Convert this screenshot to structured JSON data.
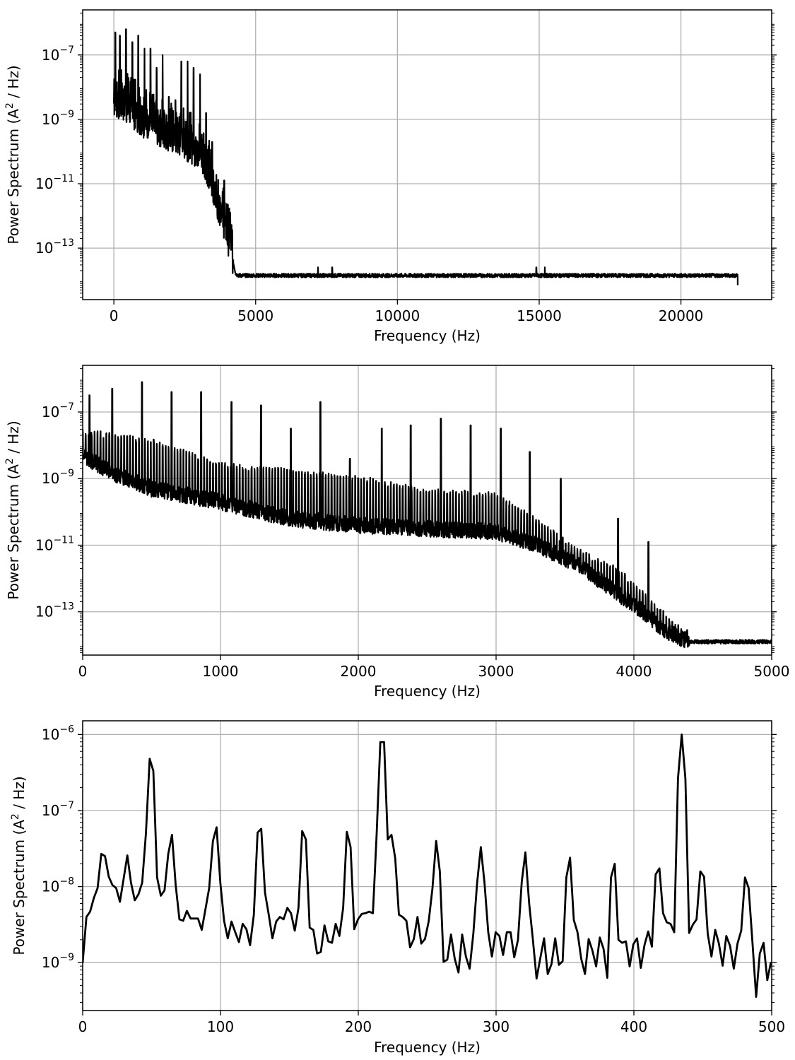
{
  "figure": {
    "background": "#ffffff",
    "line_color": "#000000",
    "grid_color": "#b0b0b0"
  },
  "chart_data": [
    {
      "type": "line",
      "name": "full-spectrum",
      "xlabel": "Frequency (Hz)",
      "ylabel": "Power Spectrum (A² / Hz)",
      "ylabel_parts": {
        "pre": "Power Spectrum (A",
        "sup": "2",
        "post": " / Hz)"
      },
      "yscale": "log",
      "xlim": [
        -1100,
        23200
      ],
      "ylim_log10": [
        -14.6,
        -5.6
      ],
      "xticks": [
        0,
        5000,
        10000,
        15000,
        20000
      ],
      "xtick_labels": [
        "0",
        "5000",
        "10000",
        "15000",
        "20000"
      ],
      "yticks_exp": [
        -7,
        -9,
        -11,
        -13
      ],
      "ytick_labels": [
        "−7",
        "−9",
        "−11",
        "−13"
      ],
      "grid": true,
      "series": {
        "envelope_base": [
          [
            0,
            -8.5
          ],
          [
            500,
            -8.7
          ],
          [
            1000,
            -9.1
          ],
          [
            2000,
            -9.6
          ],
          [
            2500,
            -9.8
          ],
          [
            3000,
            -10.1
          ],
          [
            3300,
            -10.6
          ],
          [
            3600,
            -11.5
          ],
          [
            3900,
            -12.3
          ],
          [
            4100,
            -13.0
          ],
          [
            4300,
            -13.8
          ],
          [
            4400,
            -13.85
          ],
          [
            22000,
            -13.85
          ]
        ],
        "peaks": [
          [
            50,
            -6.3
          ],
          [
            210,
            -6.4
          ],
          [
            430,
            -6.2
          ],
          [
            650,
            -6.6
          ],
          [
            860,
            -6.4
          ],
          [
            1080,
            -6.8
          ],
          [
            1290,
            -6.8
          ],
          [
            1510,
            -7.4
          ],
          [
            1720,
            -7.0
          ],
          [
            1940,
            -8.3
          ],
          [
            2170,
            -8.4
          ],
          [
            2380,
            -7.2
          ],
          [
            2600,
            -7.2
          ],
          [
            2810,
            -7.4
          ],
          [
            3040,
            -7.6
          ],
          [
            3250,
            -8.8
          ],
          [
            3470,
            -9.7
          ],
          [
            3890,
            -10.9
          ],
          [
            4100,
            -11.9
          ]
        ],
        "floor": -13.85,
        "noise_bumps": [
          [
            7200,
            -13.6
          ],
          [
            7700,
            -13.6
          ],
          [
            14900,
            -13.6
          ],
          [
            15200,
            -13.6
          ]
        ],
        "x_end": 22000
      }
    },
    {
      "type": "line",
      "name": "zoom-0-5000",
      "xlabel": "Frequency (Hz)",
      "ylabel": "Power Spectrum (A² / Hz)",
      "ylabel_parts": {
        "pre": "Power Spectrum (A",
        "sup": "2",
        "post": " / Hz)"
      },
      "yscale": "log",
      "xlim": [
        0,
        5000
      ],
      "ylim_log10": [
        -14.3,
        -5.6
      ],
      "xticks": [
        0,
        1000,
        2000,
        3000,
        4000,
        5000
      ],
      "xtick_labels": [
        "0",
        "1000",
        "2000",
        "3000",
        "4000",
        "5000"
      ],
      "yticks_exp": [
        -7,
        -9,
        -11,
        -13
      ],
      "ytick_labels": [
        "−7",
        "−9",
        "−11",
        "−13"
      ],
      "grid": true,
      "series": {
        "base": [
          [
            0,
            -8.3
          ],
          [
            200,
            -8.8
          ],
          [
            500,
            -9.3
          ],
          [
            1000,
            -9.7
          ],
          [
            1500,
            -10.2
          ],
          [
            2000,
            -10.4
          ],
          [
            2500,
            -10.5
          ],
          [
            3000,
            -10.6
          ],
          [
            3300,
            -11.0
          ],
          [
            3600,
            -11.6
          ],
          [
            3900,
            -12.5
          ],
          [
            4100,
            -13.1
          ],
          [
            4200,
            -13.5
          ],
          [
            4300,
            -13.7
          ],
          [
            4400,
            -13.9
          ],
          [
            5000,
            -13.9
          ]
        ],
        "harmonic_tops": [
          [
            0,
            -7.6
          ],
          [
            500,
            -7.9
          ],
          [
            1000,
            -8.6
          ],
          [
            1500,
            -8.8
          ],
          [
            2000,
            -9.0
          ],
          [
            2500,
            -9.4
          ],
          [
            3000,
            -9.5
          ],
          [
            3300,
            -10.3
          ],
          [
            3600,
            -11.2
          ],
          [
            3900,
            -11.8
          ],
          [
            4200,
            -13.0
          ],
          [
            4350,
            -13.6
          ]
        ],
        "harmonic_spacing": 21.5,
        "big_peaks": [
          [
            50,
            -6.5
          ],
          [
            215,
            -6.3
          ],
          [
            430,
            -6.1
          ],
          [
            645,
            -6.4
          ],
          [
            860,
            -6.4
          ],
          [
            1080,
            -6.7
          ],
          [
            1295,
            -6.8
          ],
          [
            1510,
            -7.5
          ],
          [
            1725,
            -6.7
          ],
          [
            1940,
            -8.4
          ],
          [
            2170,
            -7.5
          ],
          [
            2380,
            -7.4
          ],
          [
            2600,
            -7.2
          ],
          [
            2815,
            -7.4
          ],
          [
            3035,
            -7.5
          ],
          [
            3245,
            -8.2
          ],
          [
            3470,
            -9.0
          ],
          [
            3885,
            -10.2
          ],
          [
            4105,
            -10.9
          ]
        ],
        "floor": -13.9
      }
    },
    {
      "type": "line",
      "name": "zoom-0-500",
      "xlabel": "Frequency (Hz)",
      "ylabel": "Power Spectrum (A² / Hz)",
      "ylabel_parts": {
        "pre": "Power Spectrum (A",
        "sup": "2",
        "post": " / Hz)"
      },
      "yscale": "log",
      "xlim": [
        0,
        500
      ],
      "ylim_log10": [
        -9.63,
        -5.82
      ],
      "xticks": [
        0,
        100,
        200,
        300,
        400,
        500
      ],
      "xtick_labels": [
        "0",
        "100",
        "200",
        "300",
        "400",
        "500"
      ],
      "yticks_exp": [
        -6,
        -7,
        -8,
        -9
      ],
      "ytick_labels": [
        "−6",
        "−7",
        "−8",
        "−9"
      ],
      "grid": true,
      "points": [
        [
          0,
          -9.0
        ],
        [
          2.7,
          -8.4
        ],
        [
          5.4,
          -8.33
        ],
        [
          8.1,
          -8.15
        ],
        [
          10.8,
          -8.02
        ],
        [
          13.5,
          -7.57
        ],
        [
          16.2,
          -7.6
        ],
        [
          18.9,
          -7.87
        ],
        [
          21.6,
          -7.98
        ],
        [
          24.3,
          -8.02
        ],
        [
          27,
          -8.2
        ],
        [
          29.7,
          -7.9
        ],
        [
          32.4,
          -7.59
        ],
        [
          35.1,
          -7.95
        ],
        [
          37.8,
          -8.18
        ],
        [
          40.5,
          -8.1
        ],
        [
          43.2,
          -7.95
        ],
        [
          45.9,
          -7.3
        ],
        [
          48.6,
          -6.32
        ],
        [
          51.3,
          -6.48
        ],
        [
          54,
          -7.88
        ],
        [
          56.7,
          -8.12
        ],
        [
          59.4,
          -8.05
        ],
        [
          62.1,
          -7.57
        ],
        [
          64.8,
          -7.32
        ],
        [
          67.5,
          -7.98
        ],
        [
          70.2,
          -8.43
        ],
        [
          72.9,
          -8.45
        ],
        [
          75.6,
          -8.32
        ],
        [
          78.3,
          -8.42
        ],
        [
          81,
          -8.42
        ],
        [
          83.7,
          -8.42
        ],
        [
          86.4,
          -8.57
        ],
        [
          89.1,
          -8.3
        ],
        [
          91.8,
          -8.02
        ],
        [
          94.5,
          -7.4
        ],
        [
          97.2,
          -7.22
        ],
        [
          99.9,
          -7.95
        ],
        [
          102.6,
          -8.45
        ],
        [
          105.3,
          -8.68
        ],
        [
          108,
          -8.46
        ],
        [
          110.7,
          -8.6
        ],
        [
          113.4,
          -8.73
        ],
        [
          116.1,
          -8.49
        ],
        [
          118.8,
          -8.56
        ],
        [
          121.5,
          -8.77
        ],
        [
          124.2,
          -8.37
        ],
        [
          126.9,
          -7.29
        ],
        [
          129.6,
          -7.24
        ],
        [
          132.3,
          -8.08
        ],
        [
          135,
          -8.37
        ],
        [
          137.7,
          -8.68
        ],
        [
          140.4,
          -8.46
        ],
        [
          143.1,
          -8.4
        ],
        [
          145.8,
          -8.43
        ],
        [
          148.5,
          -8.28
        ],
        [
          151.2,
          -8.35
        ],
        [
          153.9,
          -8.58
        ],
        [
          156.6,
          -8.28
        ],
        [
          159.3,
          -7.27
        ],
        [
          162,
          -7.38
        ],
        [
          164.7,
          -8.54
        ],
        [
          167.4,
          -8.57
        ],
        [
          170.1,
          -8.88
        ],
        [
          172.8,
          -8.86
        ],
        [
          175.5,
          -8.51
        ],
        [
          178.2,
          -8.72
        ],
        [
          180.9,
          -8.74
        ],
        [
          183.6,
          -8.49
        ],
        [
          186.3,
          -8.65
        ],
        [
          189,
          -8.28
        ],
        [
          191.7,
          -7.28
        ],
        [
          194.4,
          -7.48
        ],
        [
          197.1,
          -8.56
        ],
        [
          199.8,
          -8.43
        ],
        [
          202.5,
          -8.36
        ],
        [
          205.2,
          -8.35
        ],
        [
          207.9,
          -8.33
        ],
        [
          210.6,
          -8.35
        ],
        [
          213.3,
          -7.33
        ],
        [
          216,
          -6.1
        ],
        [
          218.7,
          -6.1
        ],
        [
          221.4,
          -7.38
        ],
        [
          224.1,
          -7.32
        ],
        [
          226.8,
          -7.63
        ],
        [
          229.5,
          -8.37
        ],
        [
          232.2,
          -8.4
        ],
        [
          234.9,
          -8.45
        ],
        [
          237.6,
          -8.8
        ],
        [
          240.3,
          -8.69
        ],
        [
          243,
          -8.4
        ],
        [
          245.7,
          -8.75
        ],
        [
          248.4,
          -8.69
        ],
        [
          251.1,
          -8.46
        ],
        [
          253.8,
          -8.03
        ],
        [
          256.5,
          -7.4
        ],
        [
          259.2,
          -7.8
        ],
        [
          261.9,
          -8.99
        ],
        [
          264.6,
          -8.96
        ],
        [
          267.3,
          -8.63
        ],
        [
          270,
          -8.95
        ],
        [
          272.7,
          -9.13
        ],
        [
          275.4,
          -8.63
        ],
        [
          278.1,
          -8.92
        ],
        [
          280.8,
          -9.08
        ],
        [
          283.5,
          -8.62
        ],
        [
          286.2,
          -7.96
        ],
        [
          288.9,
          -7.48
        ],
        [
          291.6,
          -7.95
        ],
        [
          294.3,
          -8.6
        ],
        [
          297,
          -8.92
        ],
        [
          299.7,
          -8.6
        ],
        [
          302.4,
          -8.65
        ],
        [
          305.1,
          -8.9
        ],
        [
          307.8,
          -8.6
        ],
        [
          310.5,
          -8.6
        ],
        [
          313.2,
          -8.93
        ],
        [
          315.9,
          -8.7
        ],
        [
          318.6,
          -7.94
        ],
        [
          321.3,
          -7.55
        ],
        [
          324,
          -8.22
        ],
        [
          326.7,
          -8.7
        ],
        [
          329.4,
          -9.21
        ],
        [
          332.1,
          -8.94
        ],
        [
          334.8,
          -8.68
        ],
        [
          337.5,
          -9.15
        ],
        [
          340.2,
          -9.02
        ],
        [
          342.9,
          -8.68
        ],
        [
          345.6,
          -9.03
        ],
        [
          348.3,
          -8.98
        ],
        [
          351,
          -7.88
        ],
        [
          353.7,
          -7.62
        ],
        [
          356.4,
          -8.44
        ],
        [
          359.1,
          -8.6
        ],
        [
          361.8,
          -8.95
        ],
        [
          364.5,
          -9.15
        ],
        [
          367.2,
          -8.69
        ],
        [
          369.9,
          -8.84
        ],
        [
          372.6,
          -9.05
        ],
        [
          375.3,
          -8.67
        ],
        [
          378,
          -8.82
        ],
        [
          380.7,
          -9.2
        ],
        [
          383.4,
          -7.88
        ],
        [
          386.1,
          -7.7
        ],
        [
          388.8,
          -8.7
        ],
        [
          391.5,
          -8.74
        ],
        [
          394.2,
          -8.72
        ],
        [
          396.9,
          -9.05
        ],
        [
          399.6,
          -8.76
        ],
        [
          402.3,
          -8.68
        ],
        [
          405,
          -9.07
        ],
        [
          407.7,
          -8.77
        ],
        [
          410.4,
          -8.59
        ],
        [
          413.1,
          -8.79
        ],
        [
          415.8,
          -7.84
        ],
        [
          418.5,
          -7.76
        ],
        [
          421.2,
          -8.35
        ],
        [
          423.9,
          -8.47
        ],
        [
          426.6,
          -8.49
        ],
        [
          429.3,
          -8.6
        ],
        [
          432,
          -6.58
        ],
        [
          434.7,
          -6.0
        ],
        [
          437.4,
          -6.58
        ],
        [
          440.1,
          -8.61
        ],
        [
          442.8,
          -8.5
        ],
        [
          445.5,
          -8.43
        ],
        [
          448.2,
          -7.8
        ],
        [
          450.9,
          -7.87
        ],
        [
          453.6,
          -8.62
        ],
        [
          456.3,
          -8.92
        ],
        [
          459,
          -8.57
        ],
        [
          461.7,
          -8.75
        ],
        [
          464.4,
          -9.04
        ],
        [
          467.1,
          -8.65
        ],
        [
          469.8,
          -8.78
        ],
        [
          472.5,
          -9.08
        ],
        [
          475.2,
          -8.75
        ],
        [
          477.9,
          -8.58
        ],
        [
          480.6,
          -7.88
        ],
        [
          483.3,
          -8.02
        ],
        [
          486,
          -8.72
        ],
        [
          488.7,
          -9.45
        ],
        [
          491.4,
          -8.88
        ],
        [
          494.1,
          -8.74
        ],
        [
          496.8,
          -9.23
        ],
        [
          499.5,
          -8.99
        ]
      ]
    }
  ]
}
